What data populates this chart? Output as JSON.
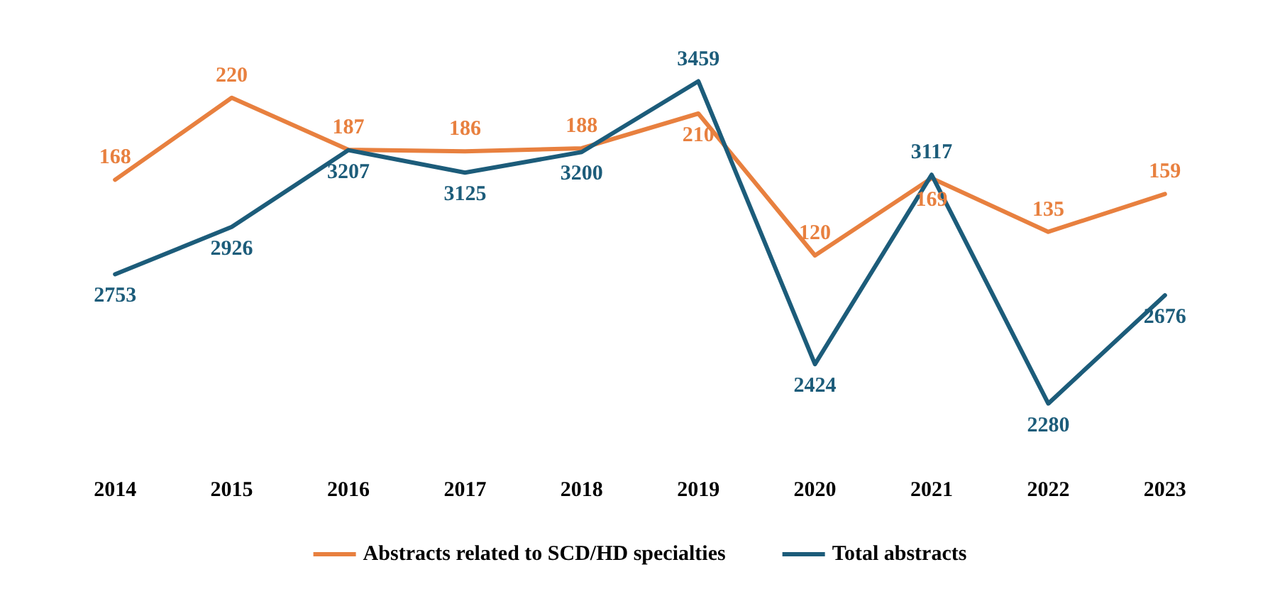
{
  "chart_data": {
    "type": "line",
    "categories": [
      "2014",
      "2015",
      "2016",
      "2017",
      "2018",
      "2019",
      "2020",
      "2021",
      "2022",
      "2023"
    ],
    "series": [
      {
        "name": "Abstracts related to SCD/HD specialties",
        "color": "#e8803f",
        "values": [
          168,
          220,
          187,
          186,
          188,
          210,
          120,
          169,
          135,
          159
        ]
      },
      {
        "name": "Total abstracts",
        "color": "#1c5c7a",
        "axis": "y2",
        "values": [
          2753,
          2926,
          3207,
          3125,
          3200,
          3459,
          2424,
          3117,
          2280,
          2676
        ]
      }
    ],
    "tick_labels": "x",
    "data_labels": true,
    "legend": "bottom",
    "marker": "none",
    "line_style": "solid",
    "grid": false
  }
}
